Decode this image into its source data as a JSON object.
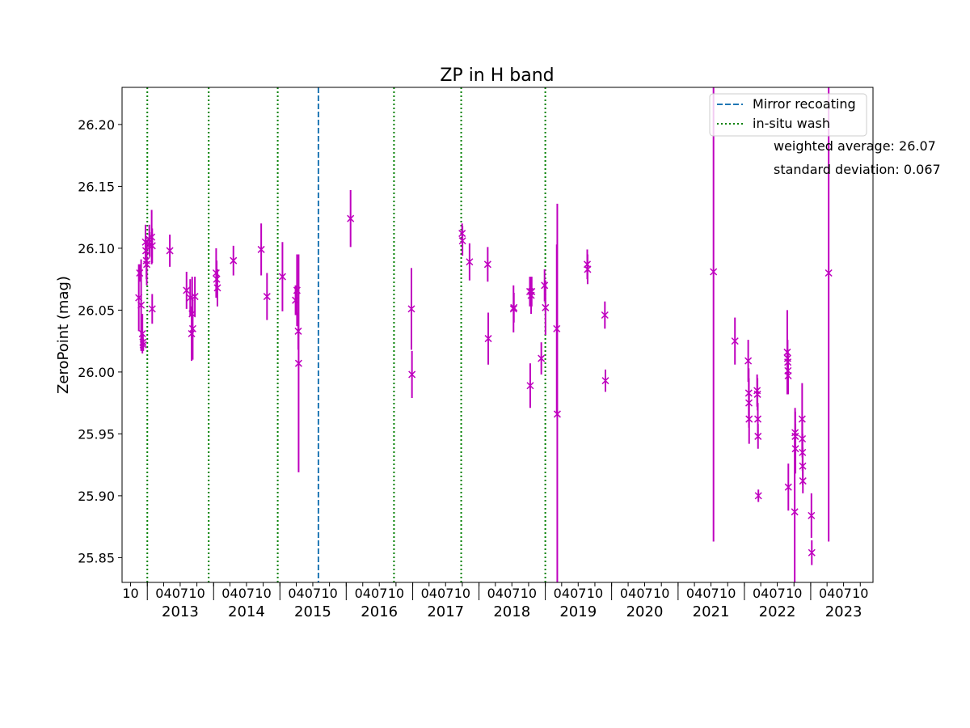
{
  "chart_data": {
    "type": "scatter",
    "title": "ZP in H band",
    "xlabel": "",
    "ylabel": "ZeroPoint (mag)",
    "ylim": [
      25.83,
      26.23
    ],
    "xlim": [
      "2012-08-15",
      "2023-12-10"
    ],
    "y_ticks": [
      "25.85",
      "25.90",
      "25.95",
      "26.00",
      "26.05",
      "26.10",
      "26.15",
      "26.20"
    ],
    "x_month_ticks": [
      {
        "date": "2012-10-01",
        "label": "10"
      },
      {
        "date": "2013-01-01",
        "label": ""
      },
      {
        "date": "2013-04-01",
        "label": "04"
      },
      {
        "date": "2013-07-01",
        "label": "07"
      },
      {
        "date": "2013-10-01",
        "label": "10"
      },
      {
        "date": "2014-01-01",
        "label": ""
      },
      {
        "date": "2014-04-01",
        "label": "04"
      },
      {
        "date": "2014-07-01",
        "label": "07"
      },
      {
        "date": "2014-10-01",
        "label": "10"
      },
      {
        "date": "2015-01-01",
        "label": ""
      },
      {
        "date": "2015-04-01",
        "label": "04"
      },
      {
        "date": "2015-07-01",
        "label": "07"
      },
      {
        "date": "2015-10-01",
        "label": "10"
      },
      {
        "date": "2016-01-01",
        "label": ""
      },
      {
        "date": "2016-04-01",
        "label": "04"
      },
      {
        "date": "2016-07-01",
        "label": "07"
      },
      {
        "date": "2016-10-01",
        "label": "10"
      },
      {
        "date": "2017-01-01",
        "label": ""
      },
      {
        "date": "2017-04-01",
        "label": "04"
      },
      {
        "date": "2017-07-01",
        "label": "07"
      },
      {
        "date": "2017-10-01",
        "label": "10"
      },
      {
        "date": "2018-01-01",
        "label": ""
      },
      {
        "date": "2018-04-01",
        "label": "04"
      },
      {
        "date": "2018-07-01",
        "label": "07"
      },
      {
        "date": "2018-10-01",
        "label": "10"
      },
      {
        "date": "2019-01-01",
        "label": ""
      },
      {
        "date": "2019-04-01",
        "label": "04"
      },
      {
        "date": "2019-07-01",
        "label": "07"
      },
      {
        "date": "2019-10-01",
        "label": "10"
      },
      {
        "date": "2020-01-01",
        "label": ""
      },
      {
        "date": "2020-04-01",
        "label": "04"
      },
      {
        "date": "2020-07-01",
        "label": "07"
      },
      {
        "date": "2020-10-01",
        "label": "10"
      },
      {
        "date": "2021-01-01",
        "label": ""
      },
      {
        "date": "2021-04-01",
        "label": "04"
      },
      {
        "date": "2021-07-01",
        "label": "07"
      },
      {
        "date": "2021-10-01",
        "label": "10"
      },
      {
        "date": "2022-01-01",
        "label": ""
      },
      {
        "date": "2022-04-01",
        "label": "04"
      },
      {
        "date": "2022-07-01",
        "label": "07"
      },
      {
        "date": "2022-10-01",
        "label": "10"
      },
      {
        "date": "2023-01-01",
        "label": ""
      },
      {
        "date": "2023-04-01",
        "label": "04"
      },
      {
        "date": "2023-07-01",
        "label": "07"
      },
      {
        "date": "2023-10-01",
        "label": "10"
      }
    ],
    "x_year_labels": [
      {
        "date": "2013-07-01",
        "label": "2013"
      },
      {
        "date": "2014-07-01",
        "label": "2014"
      },
      {
        "date": "2015-07-01",
        "label": "2015"
      },
      {
        "date": "2016-07-01",
        "label": "2016"
      },
      {
        "date": "2017-07-01",
        "label": "2017"
      },
      {
        "date": "2018-07-01",
        "label": "2018"
      },
      {
        "date": "2019-07-01",
        "label": "2019"
      },
      {
        "date": "2020-07-01",
        "label": "2020"
      },
      {
        "date": "2021-07-01",
        "label": "2021"
      },
      {
        "date": "2022-07-01",
        "label": "2022"
      },
      {
        "date": "2023-07-01",
        "label": "2023"
      }
    ],
    "vlines": [
      {
        "series": "Mirror recoating",
        "date": "2015-08-01"
      },
      {
        "series": "in-situ wash",
        "date": "2013-01-01"
      },
      {
        "series": "in-situ wash",
        "date": "2013-12-05"
      },
      {
        "series": "in-situ wash",
        "date": "2014-12-20"
      },
      {
        "series": "in-situ wash",
        "date": "2016-09-20"
      },
      {
        "series": "in-situ wash",
        "date": "2017-09-25"
      },
      {
        "series": "in-situ wash",
        "date": "2019-01-01"
      }
    ],
    "legend": {
      "placement": "top-right",
      "entries": [
        {
          "label": "Mirror recoating",
          "style": "dashed",
          "color": "#1f77b4"
        },
        {
          "label": "in-situ wash",
          "style": "dotted",
          "color": "#008000"
        }
      ]
    },
    "annotations": [
      "weighted average: 26.07",
      "standard deviation: 0.067"
    ],
    "marker_color": "#bf00bf",
    "series": [
      {
        "points": [
          {
            "x": "2012-11-15",
            "y": 26.06,
            "err": 0.027
          },
          {
            "x": "2012-11-20",
            "y": 26.08,
            "err": 0.007
          },
          {
            "x": "2012-11-28",
            "y": 26.054,
            "err": 0.037
          },
          {
            "x": "2012-12-05",
            "y": 26.031,
            "err": 0.016
          },
          {
            "x": "2012-12-08",
            "y": 26.024,
            "err": 0.006
          },
          {
            "x": "2012-12-10",
            "y": 26.022,
            "err": 0.005
          },
          {
            "x": "2012-12-22",
            "y": 26.105,
            "err": 0.014
          },
          {
            "x": "2012-12-24",
            "y": 26.098,
            "err": 0.012
          },
          {
            "x": "2012-12-27",
            "y": 26.09,
            "err": 0.015
          },
          {
            "x": "2012-12-29",
            "y": 26.087,
            "err": 0.017
          },
          {
            "x": "2013-01-12",
            "y": 26.107,
            "err": 0.012
          },
          {
            "x": "2013-01-14",
            "y": 26.103,
            "err": 0.01
          },
          {
            "x": "2013-01-25",
            "y": 26.109,
            "err": 0.022
          },
          {
            "x": "2013-01-28",
            "y": 26.102,
            "err": 0.014
          },
          {
            "x": "2013-01-28",
            "y": 26.051,
            "err": 0.012
          },
          {
            "x": "2013-05-05",
            "y": 26.098,
            "err": 0.013
          },
          {
            "x": "2013-08-05",
            "y": 26.066,
            "err": 0.015
          },
          {
            "x": "2013-08-25",
            "y": 26.06,
            "err": 0.015
          },
          {
            "x": "2013-09-02",
            "y": 26.031,
            "err": 0.022
          },
          {
            "x": "2013-09-05",
            "y": 26.047,
            "err": 0.03
          },
          {
            "x": "2013-09-08",
            "y": 26.035,
            "err": 0.025
          },
          {
            "x": "2013-09-20",
            "y": 26.061,
            "err": 0.016
          },
          {
            "x": "2014-01-15",
            "y": 26.08,
            "err": 0.02
          },
          {
            "x": "2014-01-18",
            "y": 26.075,
            "err": 0.015
          },
          {
            "x": "2014-01-22",
            "y": 26.068,
            "err": 0.015
          },
          {
            "x": "2014-04-20",
            "y": 26.09,
            "err": 0.012
          },
          {
            "x": "2014-09-20",
            "y": 26.099,
            "err": 0.021
          },
          {
            "x": "2014-10-22",
            "y": 26.061,
            "err": 0.019
          },
          {
            "x": "2015-01-15",
            "y": 26.077,
            "err": 0.028
          },
          {
            "x": "2015-03-28",
            "y": 26.058,
            "err": 0.012
          },
          {
            "x": "2015-04-05",
            "y": 26.066,
            "err": 0.029
          },
          {
            "x": "2015-04-12",
            "y": 26.033,
            "err": 0.015
          },
          {
            "x": "2015-04-14",
            "y": 26.007,
            "err": 0.088
          },
          {
            "x": "2016-01-25",
            "y": 26.124,
            "err": 0.023
          },
          {
            "x": "2016-12-25",
            "y": 26.051,
            "err": 0.033
          },
          {
            "x": "2016-12-28",
            "y": 25.998,
            "err": 0.019
          },
          {
            "x": "2017-09-30",
            "y": 26.112,
            "err": 0.008
          },
          {
            "x": "2017-10-02",
            "y": 26.106,
            "err": 0.012
          },
          {
            "x": "2017-11-10",
            "y": 26.089,
            "err": 0.015
          },
          {
            "x": "2018-02-18",
            "y": 26.087,
            "err": 0.014
          },
          {
            "x": "2018-02-21",
            "y": 26.027,
            "err": 0.021
          },
          {
            "x": "2018-07-10",
            "y": 26.051,
            "err": 0.019
          },
          {
            "x": "2018-07-12",
            "y": 26.052,
            "err": 0.012
          },
          {
            "x": "2018-10-08",
            "y": 26.065,
            "err": 0.012
          },
          {
            "x": "2018-10-10",
            "y": 25.989,
            "err": 0.018
          },
          {
            "x": "2018-10-15",
            "y": 26.062,
            "err": 0.015
          },
          {
            "x": "2018-10-18",
            "y": 26.065,
            "err": 0.012
          },
          {
            "x": "2018-12-10",
            "y": 26.011,
            "err": 0.013
          },
          {
            "x": "2018-12-28",
            "y": 26.07,
            "err": 0.013
          },
          {
            "x": "2019-01-02",
            "y": 26.052,
            "err": 0.022
          },
          {
            "x": "2019-03-05",
            "y": 26.035,
            "err": 0.068
          },
          {
            "x": "2019-03-08",
            "y": 25.966,
            "err": 0.17
          },
          {
            "x": "2019-08-20",
            "y": 26.087,
            "err": 0.012
          },
          {
            "x": "2019-08-22",
            "y": 26.083,
            "err": 0.012
          },
          {
            "x": "2019-11-25",
            "y": 26.046,
            "err": 0.011
          },
          {
            "x": "2019-11-28",
            "y": 25.993,
            "err": 0.009
          },
          {
            "x": "2021-07-15",
            "y": 26.081,
            "err": 0.218
          },
          {
            "x": "2021-11-10",
            "y": 26.025,
            "err": 0.019
          },
          {
            "x": "2022-01-22",
            "y": 26.009,
            "err": 0.017
          },
          {
            "x": "2022-01-25",
            "y": 25.983,
            "err": 0.02
          },
          {
            "x": "2022-01-26",
            "y": 25.975,
            "err": 0.02
          },
          {
            "x": "2022-01-27",
            "y": 25.962,
            "err": 0.02
          },
          {
            "x": "2022-03-12",
            "y": 25.985,
            "err": 0.013
          },
          {
            "x": "2022-03-14",
            "y": 25.982,
            "err": 0.013
          },
          {
            "x": "2022-03-16",
            "y": 25.962,
            "err": 0.013
          },
          {
            "x": "2022-03-17",
            "y": 25.948,
            "err": 0.01
          },
          {
            "x": "2022-03-19",
            "y": 25.9,
            "err": 0.005
          },
          {
            "x": "2022-08-25",
            "y": 26.016,
            "err": 0.034
          },
          {
            "x": "2022-08-27",
            "y": 26.011,
            "err": 0.015
          },
          {
            "x": "2022-08-28",
            "y": 26.008,
            "err": 0.01
          },
          {
            "x": "2022-08-29",
            "y": 26.001,
            "err": 0.015
          },
          {
            "x": "2022-08-30",
            "y": 25.997,
            "err": 0.015
          },
          {
            "x": "2022-08-31",
            "y": 25.907,
            "err": 0.019
          },
          {
            "x": "2022-10-05",
            "y": 25.887,
            "err": 0.06
          },
          {
            "x": "2022-10-07",
            "y": 25.951,
            "err": 0.02
          },
          {
            "x": "2022-10-08",
            "y": 25.948,
            "err": 0.02
          },
          {
            "x": "2022-10-09",
            "y": 25.938,
            "err": 0.02
          },
          {
            "x": "2022-11-15",
            "y": 25.962,
            "err": 0.029
          },
          {
            "x": "2022-11-16",
            "y": 25.946,
            "err": 0.015
          },
          {
            "x": "2022-11-17",
            "y": 25.935,
            "err": 0.015
          },
          {
            "x": "2022-11-18",
            "y": 25.924,
            "err": 0.015
          },
          {
            "x": "2022-11-19",
            "y": 25.912,
            "err": 0.01
          },
          {
            "x": "2023-01-05",
            "y": 25.884,
            "err": 0.018
          },
          {
            "x": "2023-01-07",
            "y": 25.854,
            "err": 0.01
          },
          {
            "x": "2023-04-10",
            "y": 26.08,
            "err": 0.217
          }
        ]
      }
    ]
  }
}
